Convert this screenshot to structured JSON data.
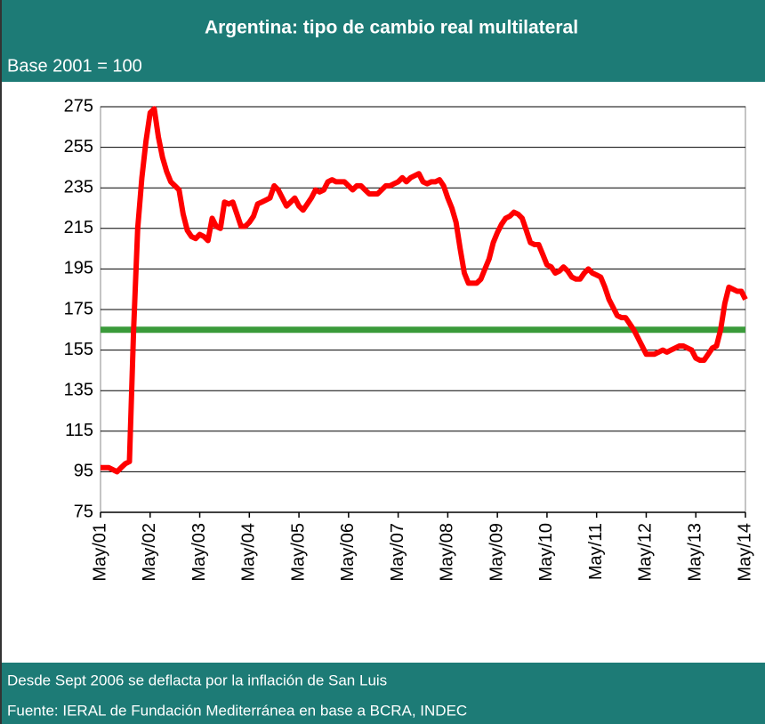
{
  "chart_data": {
    "type": "line",
    "title": "Argentina: tipo de cambio real multilateral",
    "subtitle": "Base 2001 = 100",
    "notes": [
      "Desde Sept 2006 se deflacta por la inflación de San Luis",
      "Fuente: IERAL de Fundación Mediterránea en base a BCRA, INDEC"
    ],
    "categories": [
      "May/01",
      null,
      null,
      null,
      null,
      null,
      null,
      null,
      null,
      null,
      null,
      null,
      "May/02",
      null,
      null,
      null,
      null,
      null,
      null,
      null,
      null,
      null,
      null,
      null,
      "May/03",
      null,
      null,
      null,
      null,
      null,
      null,
      null,
      null,
      null,
      null,
      null,
      "May/04",
      null,
      null,
      null,
      null,
      null,
      null,
      null,
      null,
      null,
      null,
      null,
      "May/05",
      null,
      null,
      null,
      null,
      null,
      null,
      null,
      null,
      null,
      null,
      null,
      "May/06",
      null,
      null,
      null,
      null,
      null,
      null,
      null,
      null,
      null,
      null,
      null,
      "May/07",
      null,
      null,
      null,
      null,
      null,
      null,
      null,
      null,
      null,
      null,
      null,
      "May/08",
      null,
      null,
      null,
      null,
      null,
      null,
      null,
      null,
      null,
      null,
      null,
      "May/09",
      null,
      null,
      null,
      null,
      null,
      null,
      null,
      null,
      null,
      null,
      null,
      "May/10",
      null,
      null,
      null,
      null,
      null,
      null,
      null,
      null,
      null,
      null,
      null,
      "May/11",
      null,
      null,
      null,
      null,
      null,
      null,
      null,
      null,
      null,
      null,
      null,
      "May/12",
      null,
      null,
      null,
      null,
      null,
      null,
      null,
      null,
      null,
      null,
      null,
      "May/13",
      null,
      null,
      null,
      null,
      null,
      null,
      null,
      null,
      null,
      null,
      null,
      "May/14"
    ],
    "values": [
      97,
      97,
      97,
      96,
      95,
      97,
      99,
      100,
      165,
      215,
      240,
      258,
      272,
      274,
      260,
      250,
      243,
      238,
      236,
      234,
      222,
      214,
      211,
      210,
      212,
      211,
      209,
      220,
      216,
      215,
      228,
      227,
      228,
      222,
      216,
      216,
      218,
      221,
      227,
      228,
      229,
      230,
      236,
      234,
      230,
      226,
      228,
      230,
      226,
      224,
      227,
      230,
      234,
      233,
      234,
      238,
      239,
      238,
      238,
      238,
      236,
      234,
      236,
      236,
      234,
      232,
      232,
      232,
      234,
      236,
      236,
      237,
      238,
      240,
      238,
      240,
      241,
      242,
      238,
      237,
      238,
      238,
      239,
      236,
      230,
      225,
      218,
      205,
      193,
      188,
      188,
      188,
      190,
      195,
      200,
      208,
      213,
      217,
      220,
      221,
      223,
      222,
      220,
      214,
      208,
      207,
      207,
      202,
      197,
      196,
      193,
      194,
      196,
      194,
      191,
      190,
      190,
      193,
      195,
      193,
      192,
      191,
      186,
      180,
      176,
      172,
      171,
      171,
      168,
      165,
      161,
      157,
      153,
      153,
      153,
      154,
      155,
      154,
      155,
      156,
      157,
      157,
      156,
      155,
      151,
      150,
      150,
      153,
      156,
      157,
      165,
      178,
      186,
      185,
      184,
      184,
      180
    ],
    "color": "#ff0000",
    "hline": 165,
    "hline_color": "#3a9a3a",
    "ylim": [
      75,
      275
    ],
    "yticks": [
      75,
      95,
      115,
      135,
      155,
      175,
      195,
      215,
      235,
      255,
      275
    ],
    "grid": true
  }
}
